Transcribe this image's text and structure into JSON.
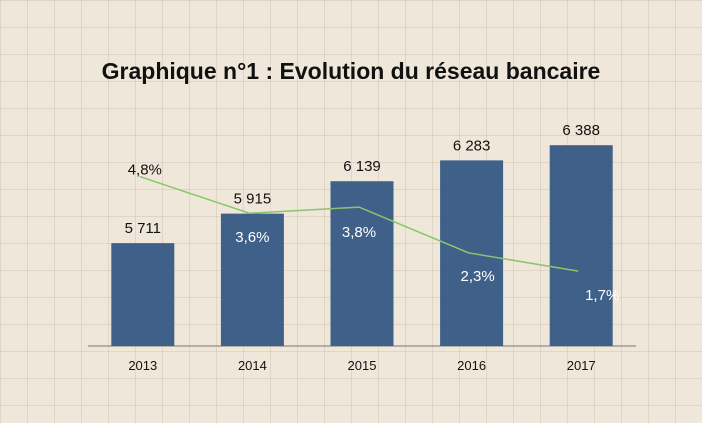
{
  "chart_data": {
    "type": "bar",
    "title": "Graphique n°1 : Evolution du réseau bancaire",
    "categories": [
      "2013",
      "2014",
      "2015",
      "2016",
      "2017"
    ],
    "series": [
      {
        "values": [
          5711,
          5915,
          6139,
          6283,
          6388
        ],
        "labels": [
          "5 711",
          "5 915",
          "6 139",
          "6 283",
          "6 388"
        ],
        "color": "#3f6088"
      },
      {
        "type": "line",
        "values": [
          4.8,
          3.6,
          3.8,
          2.3,
          1.7
        ],
        "labels": [
          "4,8%",
          "3,6%",
          "3,8%",
          "2,3%",
          "1,7%"
        ],
        "color": "#8cc46e"
      }
    ],
    "bar_axis": [
      5000,
      6500
    ],
    "line_axis": [
      -2,
      6
    ],
    "grid": false,
    "legend": "none"
  }
}
